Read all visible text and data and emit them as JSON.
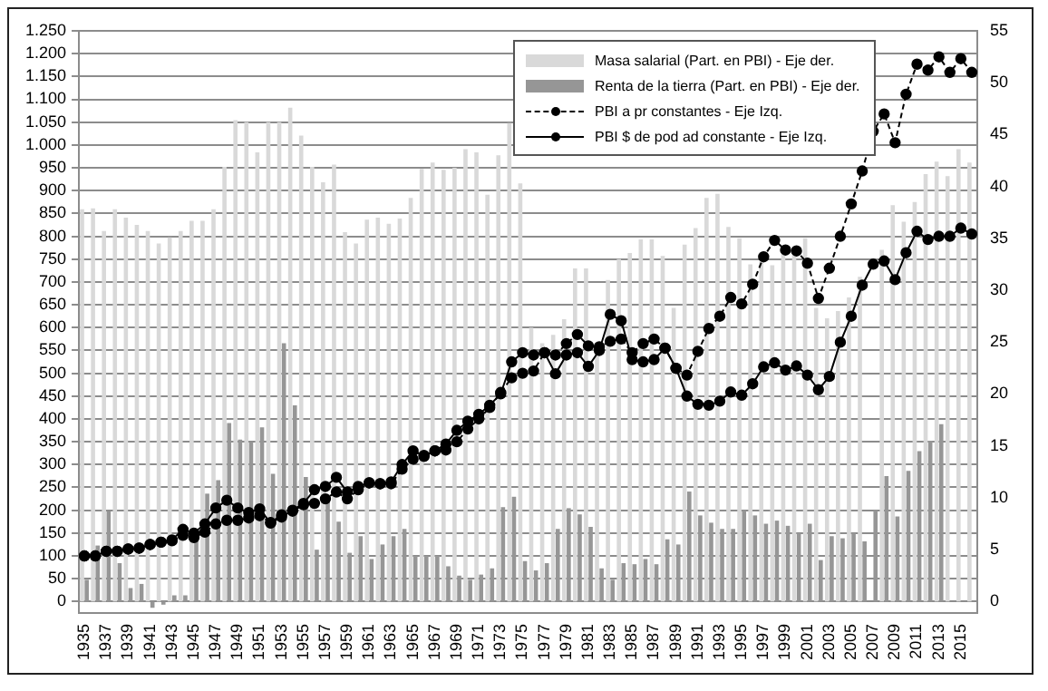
{
  "chart_data": {
    "type": "bar",
    "categories": [
      "1935",
      null,
      "1937",
      null,
      "1939",
      null,
      "1941",
      null,
      "1943",
      null,
      "1945",
      null,
      "1947",
      null,
      "1949",
      null,
      "1951",
      null,
      "1953",
      null,
      "1955",
      null,
      "1957",
      null,
      "1959",
      null,
      "1961",
      null,
      "1963",
      null,
      "1965",
      null,
      "1967",
      null,
      "1969",
      null,
      "1971",
      null,
      "1973",
      null,
      "1975",
      null,
      "1977",
      null,
      "1979",
      null,
      "1981",
      null,
      "1983",
      null,
      "1985",
      null,
      "1987",
      null,
      "1989",
      null,
      "1991",
      null,
      "1993",
      null,
      "1995",
      null,
      "1997",
      null,
      "1999",
      null,
      "2001",
      null,
      "2003",
      null,
      "2005",
      null,
      "2007",
      null,
      "2009",
      null,
      "2011",
      null,
      "2013",
      null,
      "2015",
      null
    ],
    "series": [
      {
        "name": "Masa salarial (Part. en PBI) - Eje der.",
        "axis": "y2",
        "color": "#d9d9d9",
        "values": [
          37.8,
          37.9,
          35.7,
          37.8,
          37.0,
          36.3,
          35.7,
          34.5,
          35.1,
          35.7,
          36.7,
          36.7,
          37.8,
          41.9,
          46.4,
          46.2,
          43.3,
          46.2,
          46.2,
          47.6,
          44.9,
          41.9,
          40.4,
          42.1,
          35.6,
          34.5,
          36.8,
          37.0,
          36.4,
          36.9,
          38.9,
          41.7,
          42.3,
          41.6,
          41.8,
          43.6,
          43.3,
          39.2,
          43.0,
          46.1,
          40.3,
          26.4,
          24.9,
          25.7,
          27.2,
          32.1,
          32.1,
          24.2,
          31.0,
          33.0,
          33.6,
          34.9,
          34.9,
          33.3,
          28.3,
          34.4,
          36.0,
          38.9,
          39.3,
          36.1,
          35.0,
          32.5,
          32.8,
          32.4,
          33.5,
          34.0,
          35.0,
          28.3,
          27.3,
          28.0,
          29.3,
          31.3,
          null,
          33.9,
          38.2,
          36.6,
          38.5,
          41.2,
          42.4,
          41.0,
          43.6,
          42.3
        ]
      },
      {
        "name": "Renta de la tierra (Part. en PBI) - Eje der.",
        "axis": "y2",
        "color": "#969696",
        "values": [
          2.1,
          5.4,
          8.7,
          3.7,
          1.3,
          1.7,
          -0.6,
          -0.3,
          0.6,
          0.6,
          6.2,
          10.4,
          11.7,
          17.2,
          15.6,
          15.4,
          16.8,
          12.3,
          24.9,
          18.9,
          12.0,
          5.0,
          9.6,
          7.7,
          4.7,
          6.3,
          4.1,
          5.5,
          6.3,
          7.0,
          4.4,
          4.4,
          4.4,
          3.4,
          2.5,
          2.1,
          2.6,
          3.2,
          9.1,
          10.1,
          3.9,
          3.0,
          3.7,
          7.0,
          9.0,
          8.4,
          7.2,
          3.2,
          2.1,
          3.7,
          3.6,
          4.1,
          3.6,
          6.0,
          5.5,
          10.6,
          8.3,
          7.6,
          7.0,
          7.0,
          8.8,
          8.3,
          7.5,
          7.8,
          7.3,
          6.6,
          7.5,
          4.0,
          6.3,
          6.1,
          6.6,
          5.8,
          8.8,
          12.1,
          8.2,
          12.6,
          14.5,
          15.5,
          17.1,
          null,
          null,
          null
        ]
      },
      {
        "name": "PBI a pr constantes - Eje Izq.",
        "type": "line",
        "axis": "y",
        "color": "#000000",
        "line_style": "dashed",
        "marker": "circle",
        "values": [
          100,
          100,
          110,
          110,
          115,
          117,
          125,
          130,
          133,
          145,
          140,
          152,
          170,
          178,
          178,
          183,
          188,
          173,
          190,
          198,
          212,
          215,
          225,
          240,
          225,
          245,
          260,
          258,
          258,
          290,
          312,
          318,
          330,
          332,
          350,
          378,
          400,
          425,
          458,
          490,
          500,
          505,
          545,
          540,
          565,
          585,
          560,
          558,
          570,
          575,
          545,
          565,
          575,
          555,
          511,
          496,
          548,
          598,
          625,
          666,
          652,
          695,
          755,
          791,
          770,
          768,
          741,
          664,
          730,
          800,
          871,
          943,
          1030,
          1068,
          1005,
          1111,
          1177,
          1164,
          1193,
          1159,
          1189,
          1159
        ]
      },
      {
        "name": "PBI $ de pod ad constante - Eje Izq.",
        "type": "line",
        "axis": "y",
        "color": "#000000",
        "line_style": "solid",
        "marker": "circle",
        "values": [
          100,
          100,
          110,
          110,
          115,
          117,
          125,
          130,
          135,
          158,
          150,
          170,
          205,
          222,
          205,
          195,
          203,
          172,
          185,
          200,
          215,
          245,
          252,
          272,
          240,
          252,
          260,
          258,
          262,
          300,
          330,
          320,
          330,
          345,
          375,
          395,
          410,
          430,
          455,
          525,
          545,
          540,
          545,
          499,
          540,
          545,
          515,
          550,
          629,
          615,
          530,
          525,
          530,
          555,
          511,
          450,
          432,
          430,
          439,
          459,
          452,
          477,
          514,
          523,
          507,
          516,
          496,
          464,
          493,
          568,
          625,
          693,
          739,
          746,
          705,
          764,
          811,
          793,
          800,
          800,
          818,
          805
        ]
      }
    ],
    "ylim": [
      -25,
      1250
    ],
    "yticks": [
      0,
      50,
      100,
      150,
      200,
      250,
      300,
      350,
      400,
      450,
      500,
      550,
      600,
      650,
      700,
      750,
      800,
      850,
      900,
      950,
      {
        "value": 1000,
        "label": "1.000"
      },
      {
        "value": 1050,
        "label": "1.050"
      },
      {
        "value": 1100,
        "label": "1.100"
      },
      {
        "value": 1150,
        "label": "1.150"
      },
      {
        "value": 1200,
        "label": "1.200"
      },
      {
        "value": 1250,
        "label": "1.250"
      }
    ],
    "y2lim": [
      -1.1,
      55
    ],
    "y2ticks": [
      0,
      5,
      10,
      15,
      20,
      25,
      30,
      35,
      40,
      45,
      50,
      55
    ],
    "grid": "y",
    "legend": "top right"
  }
}
